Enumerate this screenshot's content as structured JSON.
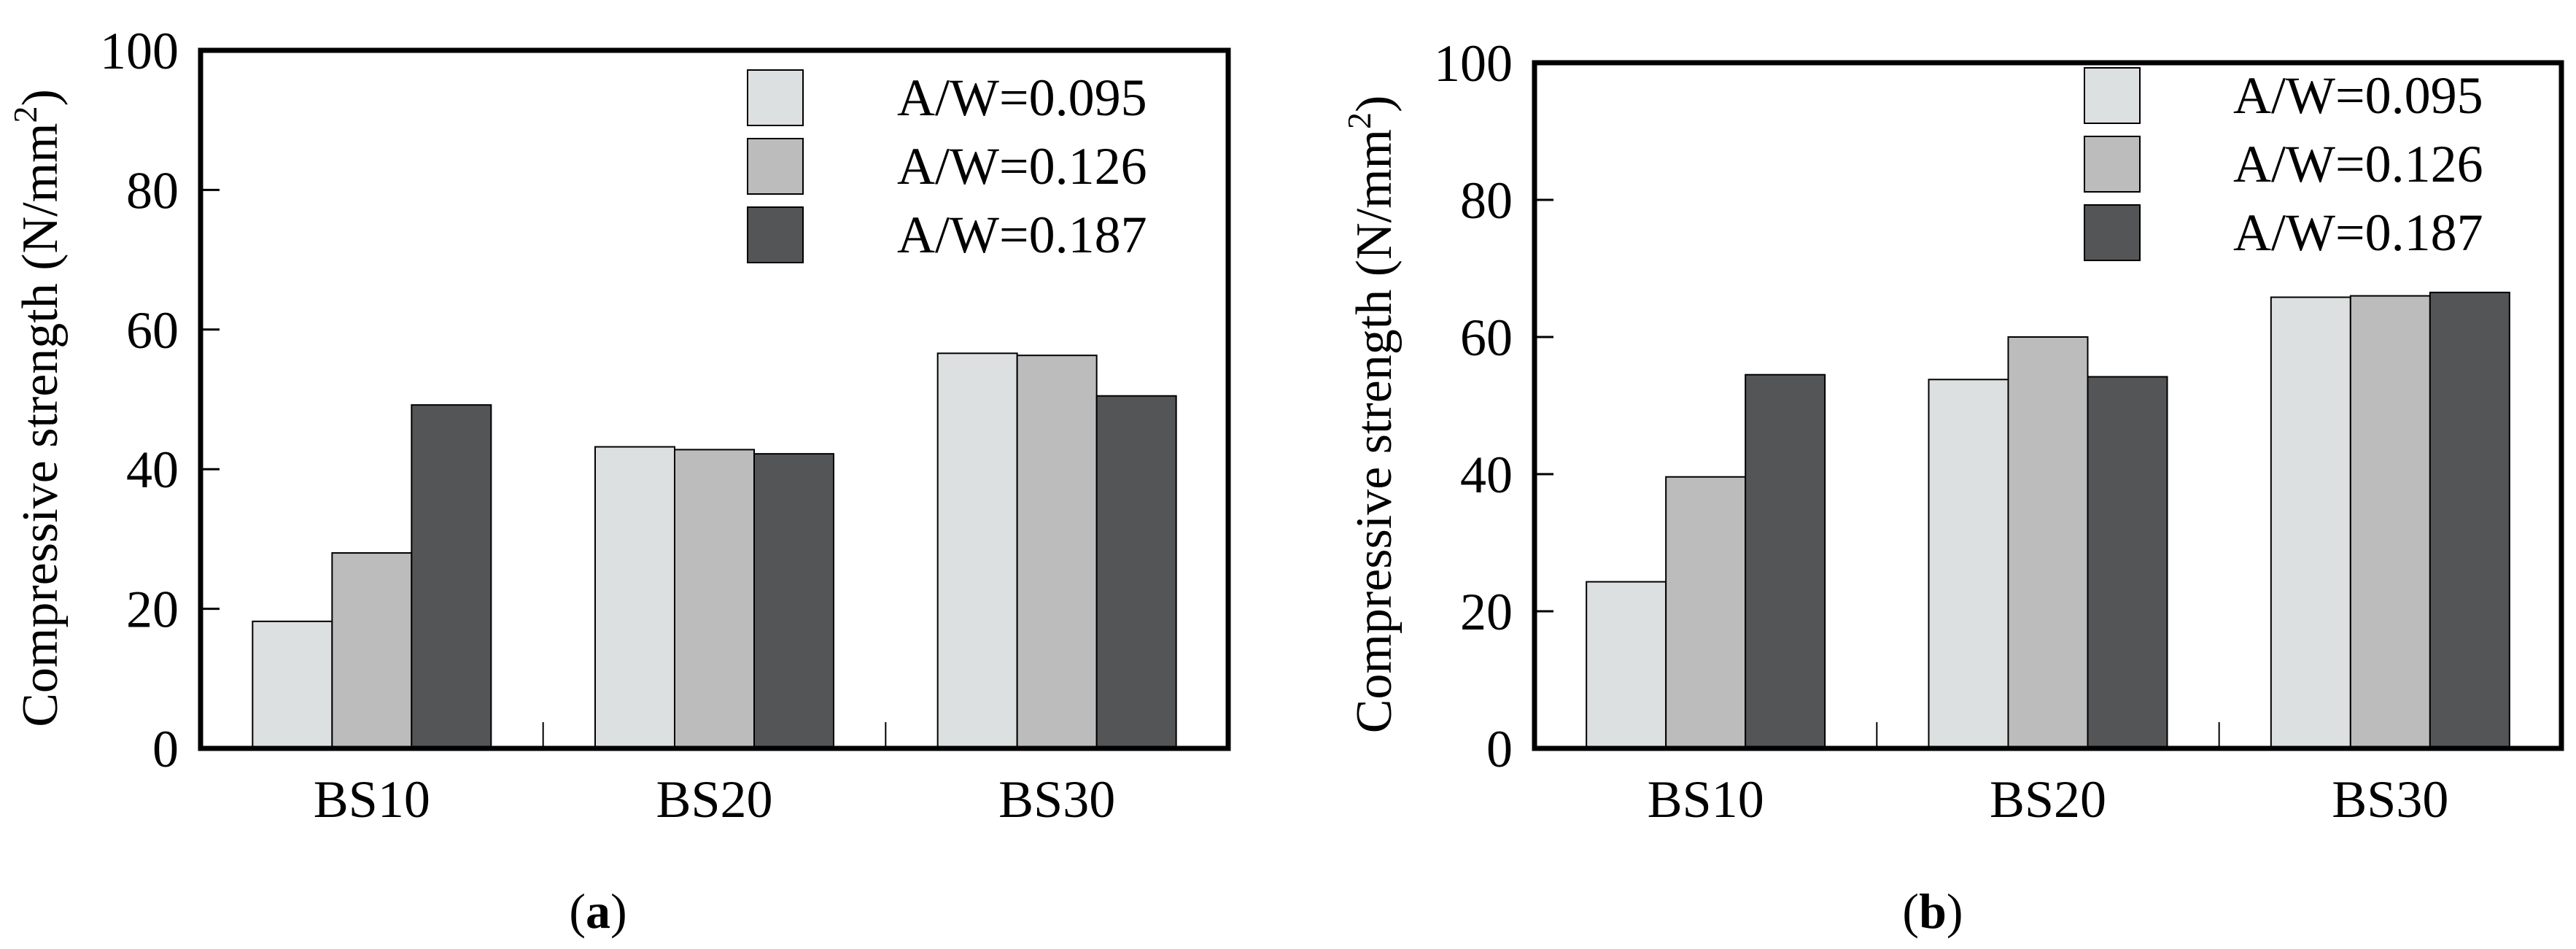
{
  "chart_data": [
    {
      "type": "bar",
      "panel_label": "a",
      "categories": [
        "BS10",
        "BS20",
        "BS30"
      ],
      "series": [
        {
          "name": "A/W=0.095",
          "values": [
            18.2,
            43.2,
            56.6
          ],
          "color": "#dde0e0"
        },
        {
          "name": "A/W=0.126",
          "values": [
            28.0,
            42.8,
            56.3
          ],
          "color": "#bcbcbc"
        },
        {
          "name": "A/W=0.187",
          "values": [
            49.2,
            42.2,
            50.5
          ],
          "color": "#545557"
        }
      ],
      "ylabel": "Compressive strength (N/mm",
      "ylabel_sup": "2",
      "ylabel_end": ")",
      "xlabel": "",
      "ylim": [
        0,
        100
      ],
      "yticks": [
        0,
        20,
        40,
        60,
        80,
        100
      ],
      "legend_position": "top-right"
    },
    {
      "type": "bar",
      "panel_label": "b",
      "categories": [
        "BS10",
        "BS20",
        "BS30"
      ],
      "series": [
        {
          "name": "A/W=0.095",
          "values": [
            24.3,
            53.8,
            65.8
          ],
          "color": "#dde0e0"
        },
        {
          "name": "A/W=0.126",
          "values": [
            39.6,
            60.0,
            66.0
          ],
          "color": "#bcbcbc"
        },
        {
          "name": "A/W=0.187",
          "values": [
            54.5,
            54.2,
            66.5
          ],
          "color": "#545557"
        }
      ],
      "ylabel": "Compressive strength (N/mm",
      "ylabel_sup": "2",
      "ylabel_end": ")",
      "xlabel": "",
      "ylim": [
        0,
        100
      ],
      "yticks": [
        0,
        20,
        40,
        60,
        80,
        100
      ],
      "legend_position": "top-right"
    }
  ]
}
